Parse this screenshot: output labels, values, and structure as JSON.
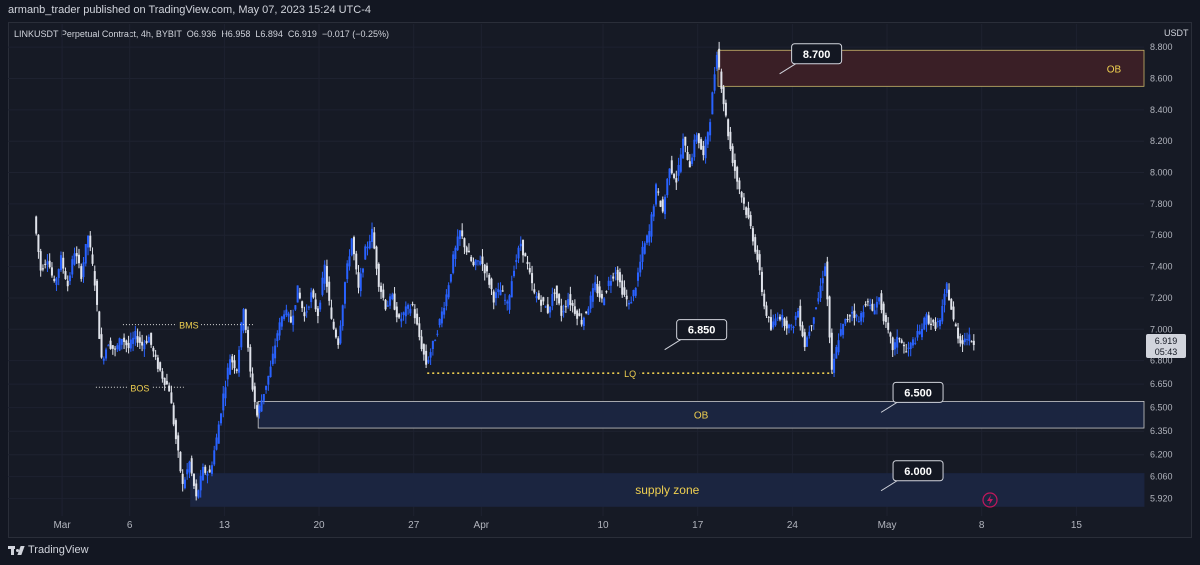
{
  "header": {
    "published": "armanb_trader published on TradingView.com, May 07, 2023 15:24 UTC-4"
  },
  "footer": {
    "brand": "TradingView"
  },
  "legend": {
    "symbol": "LINKUSDT Perpetual Contract, 4h, BYBIT",
    "o": "O6.936",
    "h": "H6.958",
    "l": "L6.894",
    "c": "C6.919",
    "chg": "−0.017 (−0.25%)"
  },
  "colors": {
    "bull": "#2962ff",
    "bear": "#e0e3eb",
    "bg": "#161a25",
    "ob_top": "#3a1f26",
    "ob_blue": "#1b2540",
    "annotation_yellow": "#f0d050"
  },
  "chart_data": {
    "type": "candlestick",
    "title": "LINKUSDT Perpetual Contract, 4h, BYBIT",
    "ylabel": "USDT",
    "ylim": [
      5.86,
      8.82
    ],
    "y_ticks": [
      "8.800",
      "8.600",
      "8.400",
      "8.200",
      "8.000",
      "7.800",
      "7.600",
      "7.400",
      "7.200",
      "7.000",
      "6.800",
      "6.650",
      "6.500",
      "6.350",
      "6.200",
      "6.060",
      "5.920"
    ],
    "x_tick_labels": [
      "Mar",
      "6",
      "13",
      "20",
      "27",
      "Apr",
      "10",
      "17",
      "24",
      "May",
      "8",
      "15"
    ],
    "x_tick_dates": [
      "2023-03-01",
      "2023-03-06",
      "2023-03-13",
      "2023-03-20",
      "2023-03-27",
      "2023-04-01",
      "2023-04-10",
      "2023-04-17",
      "2023-04-24",
      "2023-05-01",
      "2023-05-08",
      "2023-05-15"
    ],
    "last_price": {
      "value": "6.919",
      "countdown": "05:43"
    },
    "close_path": [
      [
        "2023-02-27T00:00",
        7.72
      ],
      [
        "2023-02-27T12:00",
        7.38
      ],
      [
        "2023-02-28T00:00",
        7.46
      ],
      [
        "2023-02-28T12:00",
        7.28
      ],
      [
        "2023-03-01T00:00",
        7.45
      ],
      [
        "2023-03-01T12:00",
        7.28
      ],
      [
        "2023-03-02T00:00",
        7.5
      ],
      [
        "2023-03-02T12:00",
        7.35
      ],
      [
        "2023-03-03T00:00",
        7.6
      ],
      [
        "2023-03-03T12:00",
        7.3
      ],
      [
        "2023-03-04T00:00",
        6.8
      ],
      [
        "2023-03-04T12:00",
        6.92
      ],
      [
        "2023-03-05T00:00",
        6.86
      ],
      [
        "2023-03-05T12:00",
        6.95
      ],
      [
        "2023-03-06T00:00",
        6.88
      ],
      [
        "2023-03-06T12:00",
        6.96
      ],
      [
        "2023-03-07T00:00",
        6.9
      ],
      [
        "2023-03-07T12:00",
        6.95
      ],
      [
        "2023-03-08T00:00",
        6.8
      ],
      [
        "2023-03-08T12:00",
        6.7
      ],
      [
        "2023-03-09T00:00",
        6.62
      ],
      [
        "2023-03-09T12:00",
        6.3
      ],
      [
        "2023-03-10T00:00",
        6.0
      ],
      [
        "2023-03-10T12:00",
        6.15
      ],
      [
        "2023-03-11T00:00",
        5.92
      ],
      [
        "2023-03-11T12:00",
        6.1
      ],
      [
        "2023-03-12T00:00",
        6.08
      ],
      [
        "2023-03-12T12:00",
        6.3
      ],
      [
        "2023-03-13T00:00",
        6.58
      ],
      [
        "2023-03-13T12:00",
        6.82
      ],
      [
        "2023-03-14T00:00",
        6.75
      ],
      [
        "2023-03-14T12:00",
        7.15
      ],
      [
        "2023-03-15T00:00",
        6.72
      ],
      [
        "2023-03-15T12:00",
        6.45
      ],
      [
        "2023-03-16T00:00",
        6.6
      ],
      [
        "2023-03-16T12:00",
        6.75
      ],
      [
        "2023-03-17T00:00",
        6.98
      ],
      [
        "2023-03-17T12:00",
        7.12
      ],
      [
        "2023-03-18T00:00",
        7.05
      ],
      [
        "2023-03-18T12:00",
        7.25
      ],
      [
        "2023-03-19T00:00",
        7.08
      ],
      [
        "2023-03-19T12:00",
        7.22
      ],
      [
        "2023-03-20T00:00",
        7.1
      ],
      [
        "2023-03-20T12:00",
        7.4
      ],
      [
        "2023-03-21T00:00",
        7.05
      ],
      [
        "2023-03-21T12:00",
        6.92
      ],
      [
        "2023-03-22T00:00",
        7.3
      ],
      [
        "2023-03-22T12:00",
        7.58
      ],
      [
        "2023-03-23T00:00",
        7.25
      ],
      [
        "2023-03-23T12:00",
        7.5
      ],
      [
        "2023-03-24T00:00",
        7.62
      ],
      [
        "2023-03-24T12:00",
        7.3
      ],
      [
        "2023-03-25T00:00",
        7.15
      ],
      [
        "2023-03-25T12:00",
        7.2
      ],
      [
        "2023-03-26T00:00",
        7.05
      ],
      [
        "2023-03-26T12:00",
        7.12
      ],
      [
        "2023-03-27T00:00",
        7.15
      ],
      [
        "2023-03-27T12:00",
        6.95
      ],
      [
        "2023-03-28T00:00",
        6.78
      ],
      [
        "2023-03-28T12:00",
        6.9
      ],
      [
        "2023-03-29T00:00",
        7.05
      ],
      [
        "2023-03-29T12:00",
        7.22
      ],
      [
        "2023-03-30T00:00",
        7.45
      ],
      [
        "2023-03-30T12:00",
        7.62
      ],
      [
        "2023-03-31T00:00",
        7.5
      ],
      [
        "2023-03-31T12:00",
        7.4
      ],
      [
        "2023-04-01T00:00",
        7.45
      ],
      [
        "2023-04-01T12:00",
        7.35
      ],
      [
        "2023-04-02T00:00",
        7.2
      ],
      [
        "2023-04-02T12:00",
        7.25
      ],
      [
        "2023-04-03T00:00",
        7.15
      ],
      [
        "2023-04-03T12:00",
        7.4
      ],
      [
        "2023-04-04T00:00",
        7.55
      ],
      [
        "2023-04-04T12:00",
        7.4
      ],
      [
        "2023-04-05T00:00",
        7.22
      ],
      [
        "2023-04-05T12:00",
        7.18
      ],
      [
        "2023-04-06T00:00",
        7.12
      ],
      [
        "2023-04-06T12:00",
        7.25
      ],
      [
        "2023-04-07T00:00",
        7.1
      ],
      [
        "2023-04-07T12:00",
        7.2
      ],
      [
        "2023-04-08T00:00",
        7.12
      ],
      [
        "2023-04-08T12:00",
        7.05
      ],
      [
        "2023-04-09T00:00",
        7.15
      ],
      [
        "2023-04-09T12:00",
        7.28
      ],
      [
        "2023-04-10T00:00",
        7.18
      ],
      [
        "2023-04-10T12:00",
        7.3
      ],
      [
        "2023-04-11T00:00",
        7.38
      ],
      [
        "2023-04-11T12:00",
        7.25
      ],
      [
        "2023-04-12T00:00",
        7.15
      ],
      [
        "2023-04-12T12:00",
        7.28
      ],
      [
        "2023-04-13T00:00",
        7.5
      ],
      [
        "2023-04-13T12:00",
        7.62
      ],
      [
        "2023-04-14T00:00",
        7.9
      ],
      [
        "2023-04-14T12:00",
        7.75
      ],
      [
        "2023-04-15T00:00",
        8.05
      ],
      [
        "2023-04-15T12:00",
        7.95
      ],
      [
        "2023-04-16T00:00",
        8.2
      ],
      [
        "2023-04-16T12:00",
        8.05
      ],
      [
        "2023-04-17T00:00",
        8.25
      ],
      [
        "2023-04-17T12:00",
        8.1
      ],
      [
        "2023-04-18T00:00",
        8.35
      ],
      [
        "2023-04-18T12:00",
        8.78
      ],
      [
        "2023-04-19T00:00",
        8.45
      ],
      [
        "2023-04-19T12:00",
        8.15
      ],
      [
        "2023-04-20T00:00",
        7.95
      ],
      [
        "2023-04-20T12:00",
        7.8
      ],
      [
        "2023-04-21T00:00",
        7.65
      ],
      [
        "2023-04-21T12:00",
        7.45
      ],
      [
        "2023-04-22T00:00",
        7.15
      ],
      [
        "2023-04-22T12:00",
        7.0
      ],
      [
        "2023-04-23T00:00",
        7.1
      ],
      [
        "2023-04-23T12:00",
        7.05
      ],
      [
        "2023-04-24T00:00",
        7.0
      ],
      [
        "2023-04-24T12:00",
        7.12
      ],
      [
        "2023-04-25T00:00",
        6.9
      ],
      [
        "2023-04-25T12:00",
        7.05
      ],
      [
        "2023-04-26T00:00",
        7.2
      ],
      [
        "2023-04-26T12:00",
        7.42
      ],
      [
        "2023-04-27T00:00",
        6.72
      ],
      [
        "2023-04-27T12:00",
        6.95
      ],
      [
        "2023-04-28T00:00",
        7.05
      ],
      [
        "2023-04-28T12:00",
        7.12
      ],
      [
        "2023-04-29T00:00",
        7.05
      ],
      [
        "2023-04-29T12:00",
        7.18
      ],
      [
        "2023-04-30T00:00",
        7.12
      ],
      [
        "2023-04-30T12:00",
        7.2
      ],
      [
        "2023-05-01T00:00",
        7.02
      ],
      [
        "2023-05-01T12:00",
        6.88
      ],
      [
        "2023-05-02T00:00",
        6.95
      ],
      [
        "2023-05-02T12:00",
        6.85
      ],
      [
        "2023-05-03T00:00",
        6.92
      ],
      [
        "2023-05-03T12:00",
        6.98
      ],
      [
        "2023-05-04T00:00",
        7.08
      ],
      [
        "2023-05-04T12:00",
        7.02
      ],
      [
        "2023-05-05T00:00",
        7.05
      ],
      [
        "2023-05-05T12:00",
        7.28
      ],
      [
        "2023-05-06T00:00",
        7.05
      ],
      [
        "2023-05-06T12:00",
        6.92
      ],
      [
        "2023-05-07T00:00",
        6.95
      ],
      [
        "2023-05-07T12:00",
        6.919
      ]
    ],
    "zones": [
      {
        "label": "OB",
        "from": "2023-04-18T12:00",
        "y_top": 8.78,
        "y_bottom": 8.55,
        "color": "#3a1f26",
        "border": "#c9b56a"
      },
      {
        "label": "OB",
        "from": "2023-03-15T12:00",
        "y_top": 6.54,
        "y_bottom": 6.37,
        "color": "#1b2540",
        "border": "#c9c9c9"
      },
      {
        "label": "supply zone",
        "from": "2023-03-10T12:00",
        "y_top": 6.08,
        "y_bottom": 5.87,
        "color": "#1b2540",
        "border": "#1b2540"
      }
    ],
    "levels": [
      {
        "label": "BMS",
        "from": "2023-03-05T12:00",
        "to": "2023-03-15T06:00",
        "y": 7.03,
        "style": "dotted"
      },
      {
        "label": "BOS",
        "from": "2023-03-03T12:00",
        "to": "2023-03-10T00:00",
        "y": 6.63,
        "style": "dotted"
      },
      {
        "label": "LQ",
        "from": "2023-03-28T00:00",
        "to": "2023-04-27T00:00",
        "y": 6.72,
        "style": "dotted"
      }
    ],
    "callouts": [
      {
        "text": "8.700",
        "date": "2023-04-23T12:00",
        "y": 8.63
      },
      {
        "text": "6.850",
        "date": "2023-04-15T00:00",
        "y": 6.87
      },
      {
        "text": "6.500",
        "date": "2023-05-01T00:00",
        "y": 6.47
      },
      {
        "text": "6.000",
        "date": "2023-05-01T00:00",
        "y": 5.97
      }
    ]
  }
}
